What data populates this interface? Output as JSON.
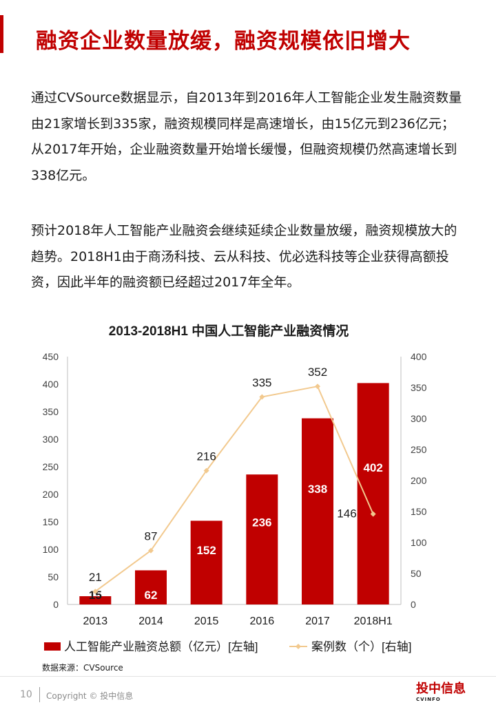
{
  "page": {
    "title": "融资企业数量放缓，融资规模依旧增大",
    "paragraphs": [
      "通过CVSource数据显示，自2013年到2016年人工智能企业发生融资数量由21家增长到335家，融资规模同样是高速增长，由15亿元到236亿元；从2017年开始，企业融资数量开始增长缓慢，但融资规模仍然高速增长到338亿元。",
      "预计2018年人工智能产业融资会继续延续企业数量放缓，融资规模放大的趋势。2018H1由于商汤科技、云从科技、优必选科技等企业获得高额投资，因此半年的融资额已经超过2017年全年。"
    ],
    "source": "数据来源：CVSource",
    "footer": {
      "page_number": "10",
      "copyright": "Copyright © 投中信息",
      "logo_main": "投中信息",
      "logo_sub": "CVINFO"
    }
  },
  "colors": {
    "accent": "#c00000",
    "bar": "#c00000",
    "line": "#f2c98e",
    "text": "#1a1a1a"
  },
  "chart_data": {
    "type": "bar",
    "title": "2013-2018H1  中国人工智能产业融资情况",
    "categories": [
      "2013",
      "2014",
      "2015",
      "2016",
      "2017",
      "2018H1"
    ],
    "series": [
      {
        "name": "人工智能产业融资总额（亿元）[左轴]",
        "type": "bar",
        "axis": "left",
        "values": [
          15,
          62,
          152,
          236,
          338,
          402
        ]
      },
      {
        "name": "案例数（个）[右轴]",
        "type": "line",
        "axis": "right",
        "values": [
          21,
          87,
          216,
          335,
          352,
          146
        ]
      }
    ],
    "y_left": {
      "range": [
        0,
        450
      ],
      "ticks": [
        0,
        50,
        100,
        150,
        200,
        250,
        300,
        350,
        400,
        450
      ]
    },
    "y_right": {
      "range": [
        0,
        400
      ],
      "ticks": [
        0,
        50,
        100,
        150,
        200,
        250,
        300,
        350,
        400
      ]
    },
    "grid": false,
    "legend": "bottom"
  }
}
